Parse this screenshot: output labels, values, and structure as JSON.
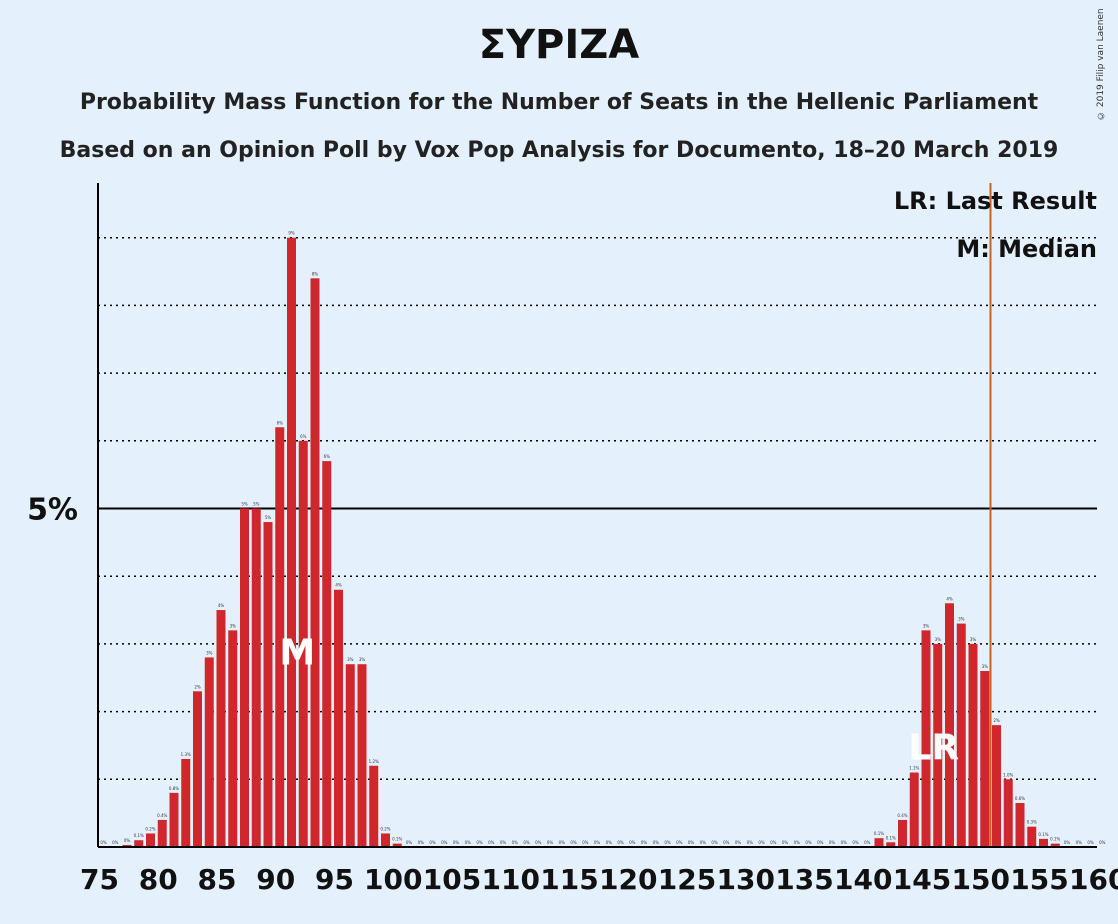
{
  "chart_data": {
    "type": "bar",
    "title": "ΣΥΡΙΖΑ",
    "subtitle_1": "Probability Mass Function for the Number of Seats in the Hellenic Parliament",
    "subtitle_2": "Based on an Opinion Poll by Vox Pop Analysis for Documento, 18–20 March 2019",
    "copyright": "© 2019 Filip van Laenen",
    "xlim": [
      75,
      160
    ],
    "ylim": [
      0,
      9.8
    ],
    "x_ticks": [
      75,
      80,
      85,
      90,
      95,
      100,
      105,
      110,
      115,
      120,
      125,
      130,
      135,
      140,
      145,
      150,
      155,
      160
    ],
    "y_major_tick": 5,
    "y_major_tick_label": "5%",
    "grid": "dotted every 1%",
    "bar_color": "#d0272c",
    "last_result_line_color": "#c8641e",
    "x": [
      75,
      76,
      77,
      78,
      79,
      80,
      81,
      82,
      83,
      84,
      85,
      86,
      87,
      88,
      89,
      90,
      91,
      92,
      93,
      94,
      95,
      96,
      97,
      98,
      99,
      100,
      101,
      102,
      103,
      104,
      105,
      106,
      107,
      108,
      109,
      110,
      111,
      112,
      113,
      114,
      115,
      116,
      117,
      118,
      119,
      120,
      121,
      122,
      123,
      124,
      125,
      126,
      127,
      128,
      129,
      130,
      131,
      132,
      133,
      134,
      135,
      136,
      137,
      138,
      139,
      140,
      141,
      142,
      143,
      144,
      145,
      146,
      147,
      148,
      149,
      150,
      151,
      152,
      153,
      154,
      155,
      156,
      157,
      158,
      159,
      160
    ],
    "values": [
      0,
      0,
      0.03,
      0.1,
      0.2,
      0.4,
      0.8,
      1.3,
      2.3,
      2.8,
      3.5,
      3.2,
      5.0,
      5.0,
      4.8,
      6.2,
      9.0,
      6.0,
      8.4,
      5.7,
      3.8,
      2.7,
      2.7,
      1.2,
      0.2,
      0.05,
      0,
      0,
      0,
      0,
      0,
      0,
      0,
      0,
      0,
      0,
      0,
      0,
      0,
      0,
      0,
      0,
      0,
      0,
      0,
      0,
      0,
      0,
      0,
      0,
      0,
      0,
      0,
      0,
      0,
      0,
      0,
      0,
      0,
      0,
      0,
      0,
      0,
      0,
      0,
      0,
      0.13,
      0.07,
      0.4,
      1.1,
      3.2,
      3.0,
      3.6,
      3.3,
      3.0,
      2.6,
      1.8,
      1.0,
      0.65,
      0.3,
      0.12,
      0.05,
      0,
      0,
      0,
      0
    ],
    "data_labels": [
      "0%",
      "0%",
      "0%",
      "0.1%",
      "0.2%",
      "0.4%",
      "0.8%",
      "1.3%",
      "2%",
      "3%",
      "4%",
      "3%",
      "5%",
      "5%",
      "5%",
      "6%",
      "9%",
      "6%",
      "8%",
      "6%",
      "4%",
      "3%",
      "3%",
      "1.2%",
      "0.2%",
      "0.1%",
      "0%",
      "0%",
      "0%",
      "0%",
      "0%",
      "0%",
      "0%",
      "0%",
      "0%",
      "0%",
      "0%",
      "0%",
      "0%",
      "0%",
      "0%",
      "0%",
      "0%",
      "0%",
      "0%",
      "0%",
      "0%",
      "0%",
      "0%",
      "0%",
      "0%",
      "0%",
      "0%",
      "0%",
      "0%",
      "0%",
      "0%",
      "0%",
      "0%",
      "0%",
      "0%",
      "0%",
      "0%",
      "0%",
      "0%",
      "0%",
      "0.1%",
      "0.1%",
      "0.4%",
      "1.1%",
      "3%",
      "3%",
      "4%",
      "3%",
      "3%",
      "3%",
      "2%",
      "1.0%",
      "0.6%",
      "0.3%",
      "0.1%",
      "0.1%",
      "0%",
      "0%",
      "0%",
      "0%"
    ],
    "median": {
      "x": 92,
      "label": "M",
      "marker_value": 2.9
    },
    "last_result": {
      "x": 151,
      "label": "LR",
      "marker_value": 1.5
    },
    "legend": {
      "placement": "top-right",
      "lr": "LR: Last Result",
      "m": "M: Median"
    }
  }
}
